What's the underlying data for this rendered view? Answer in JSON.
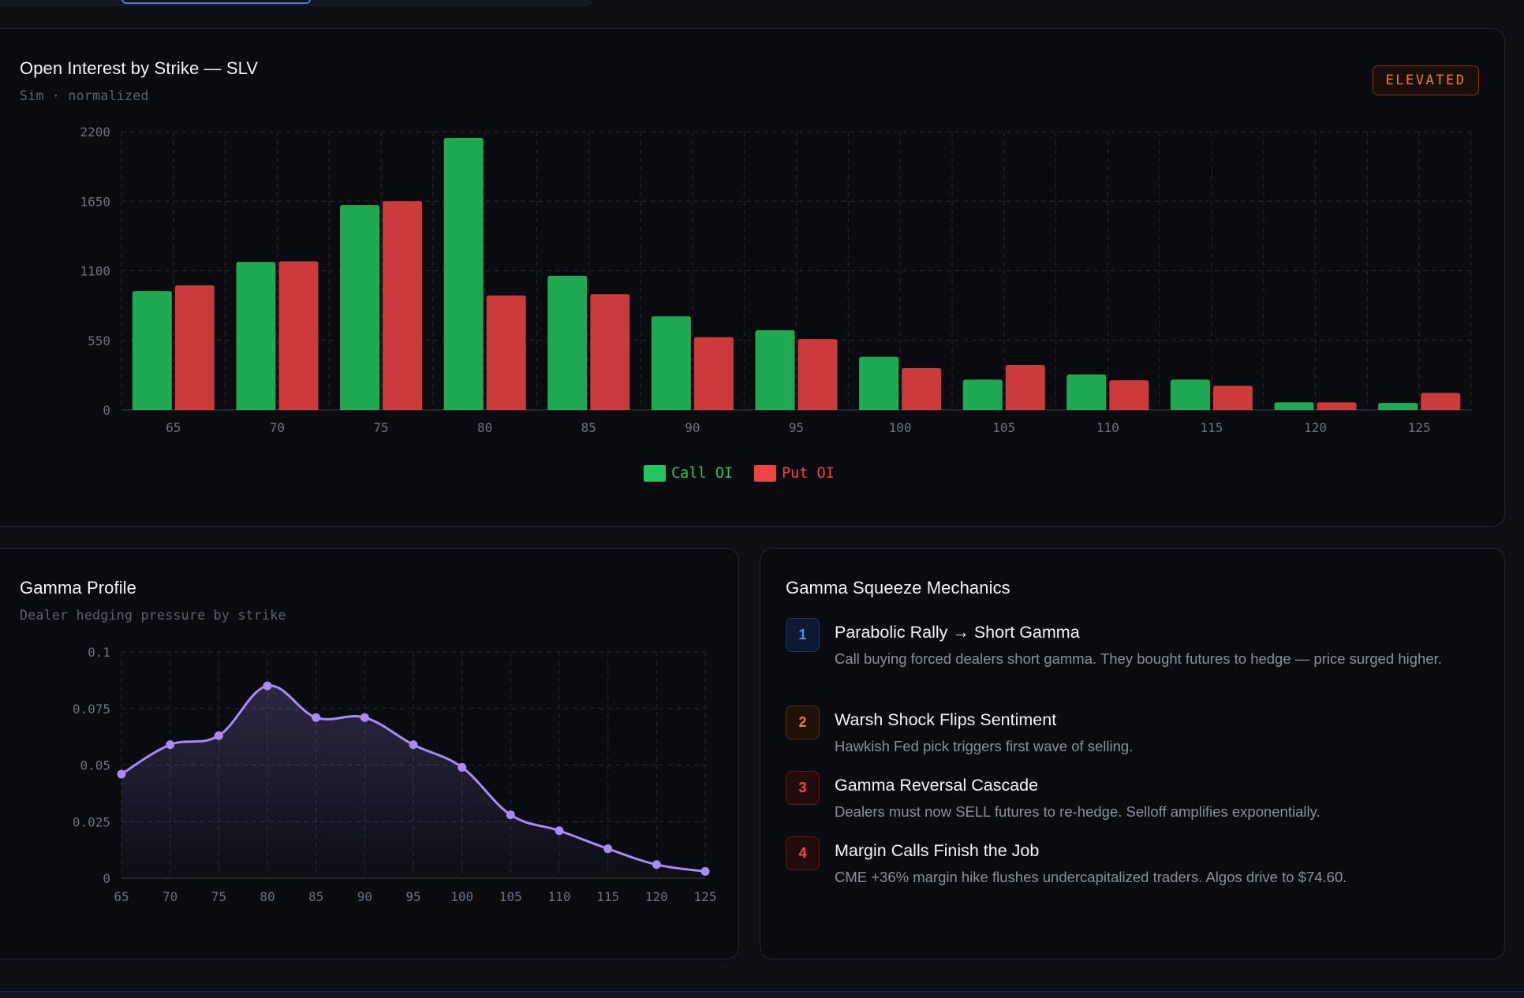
{
  "oi_card": {
    "title": "Open Interest by Strike — SLV",
    "subtitle": "Sim · normalized",
    "badge": "ELEVATED"
  },
  "gamma_card": {
    "title": "Gamma Profile",
    "subtitle": "Dealer hedging pressure by strike"
  },
  "mechanics": {
    "title": "Gamma Squeeze Mechanics",
    "steps": [
      {
        "num": "1",
        "title": "Parabolic Rally → Short Gamma",
        "desc": "Call buying forced dealers short gamma. They bought futures to hedge — price surged higher.",
        "color": "#5b8cf0"
      },
      {
        "num": "2",
        "title": "Warsh Shock Flips Sentiment",
        "desc": "Hawkish Fed pick triggers first wave of selling.",
        "color": "#f07a33"
      },
      {
        "num": "3",
        "title": "Gamma Reversal Cascade",
        "desc": "Dealers must now SELL futures to re-hedge. Selloff amplifies exponentially.",
        "color": "#ef4a4a"
      },
      {
        "num": "4",
        "title": "Margin Calls Finish the Job",
        "desc": "CME +36% margin hike flushes undercapitalized traders. Algos drive to $74.60.",
        "color": "#ef4a4a"
      }
    ]
  },
  "colors": {
    "call": "#22c55e",
    "put": "#ef4444",
    "gamma": "#a78bfa"
  },
  "chart_data": [
    {
      "type": "bar",
      "title": "Open Interest by Strike — SLV",
      "categories": [
        "65",
        "70",
        "75",
        "80",
        "85",
        "90",
        "95",
        "100",
        "105",
        "110",
        "115",
        "120",
        "125"
      ],
      "series": [
        {
          "name": "Call OI",
          "values": [
            940,
            1170,
            1620,
            2150,
            1060,
            740,
            630,
            420,
            240,
            280,
            240,
            60,
            55
          ]
        },
        {
          "name": "Put OI",
          "values": [
            985,
            1175,
            1650,
            905,
            915,
            575,
            560,
            330,
            355,
            235,
            190,
            60,
            135
          ]
        }
      ],
      "yticks": [
        "0",
        "550",
        "1100",
        "1650",
        "2200"
      ],
      "ylim": [
        0,
        2200
      ],
      "legend": "bottom-center",
      "grid": true
    },
    {
      "type": "line",
      "title": "Gamma Profile",
      "x": [
        "65",
        "70",
        "75",
        "80",
        "85",
        "90",
        "95",
        "100",
        "105",
        "110",
        "115",
        "120",
        "125"
      ],
      "series": [
        {
          "name": "Gamma",
          "values": [
            0.046,
            0.059,
            0.063,
            0.085,
            0.071,
            0.071,
            0.059,
            0.049,
            0.028,
            0.021,
            0.013,
            0.006,
            0.003
          ]
        }
      ],
      "yticks": [
        "0",
        "0.025",
        "0.05",
        "0.075",
        "0.1"
      ],
      "ylim": [
        0,
        0.1
      ],
      "grid": true
    }
  ]
}
